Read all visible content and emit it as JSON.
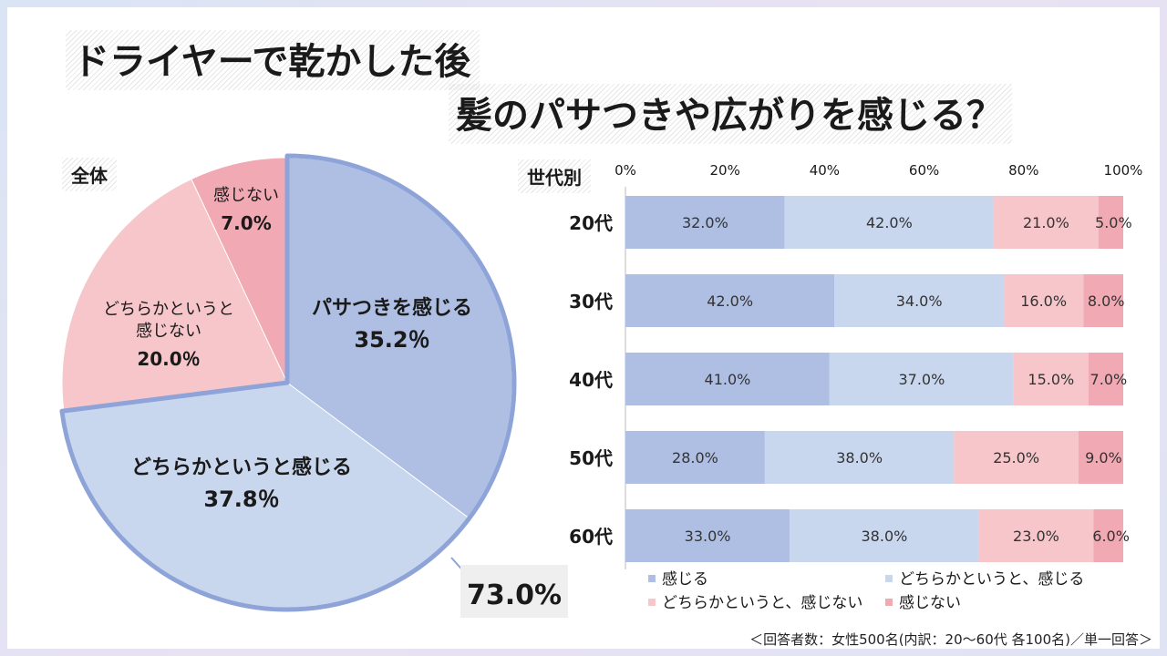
{
  "title": {
    "line1": "ドライヤーで乾かした後",
    "line2": "髪のパサつきや広がりを感じる？"
  },
  "pie_section": {
    "label": "全体",
    "total_callout": "73.0%"
  },
  "bar_section": {
    "label": "世代別"
  },
  "colors": {
    "feel": "#aebfe3",
    "somewhat_feel": "#c8d6ee",
    "somewhat_not": "#f6c6ca",
    "not_feel": "#f1a9b4",
    "highlight_border": "#8ea4d8"
  },
  "chart_data": [
    {
      "type": "pie",
      "title": "全体",
      "slices": [
        {
          "label": "パサつきを感じる",
          "value": 35.2,
          "display": "35.2％"
        },
        {
          "label": "どちらかというと感じる",
          "value": 37.8,
          "display": "37.8％"
        },
        {
          "label": "どちらかというと感じない",
          "value": 20.0,
          "display": "20.0％"
        },
        {
          "label": "感じない",
          "value": 7.0,
          "display": "7.0%"
        }
      ],
      "slice_labels_display": [
        [
          "パサつきを感じる"
        ],
        [
          "どちらかというと感じる"
        ],
        [
          "どちらかというと",
          "感じない"
        ],
        [
          "感じない"
        ]
      ],
      "annotation": "73.0%"
    },
    {
      "type": "bar",
      "orientation": "horizontal",
      "stacked": true,
      "title": "世代別",
      "categories": [
        "20代",
        "30代",
        "40代",
        "50代",
        "60代"
      ],
      "xlim": [
        0,
        100
      ],
      "xticks": [
        "0%",
        "20%",
        "40%",
        "60%",
        "80%",
        "100%"
      ],
      "series": [
        {
          "name": "感じる",
          "values": [
            32.0,
            42.0,
            41.0,
            28.0,
            33.0
          ],
          "labels": [
            "32.0%",
            "42.0%",
            "41.0%",
            "28.0%",
            "33.0%"
          ]
        },
        {
          "name": "どちらかというと、感じる",
          "values": [
            42.0,
            34.0,
            37.0,
            38.0,
            38.0
          ],
          "labels": [
            "42.0%",
            "34.0%",
            "37.0%",
            "38.0%",
            "38.0%"
          ]
        },
        {
          "name": "どちらかというと、感じない",
          "values": [
            21.0,
            16.0,
            15.0,
            25.0,
            23.0
          ],
          "labels": [
            "21.0%",
            "16.0%",
            "15.0%",
            "25.0%",
            "23.0%"
          ]
        },
        {
          "name": "感じない",
          "values": [
            5.0,
            8.0,
            7.0,
            9.0,
            6.0
          ],
          "labels": [
            "5.0%",
            "8.0%",
            "7.0%",
            "9.0%",
            "6.0%"
          ]
        }
      ],
      "legend_position": "bottom"
    }
  ],
  "footnote": "＜回答者数：女性500名(内訳：20～60代 各100名)／単一回答＞"
}
